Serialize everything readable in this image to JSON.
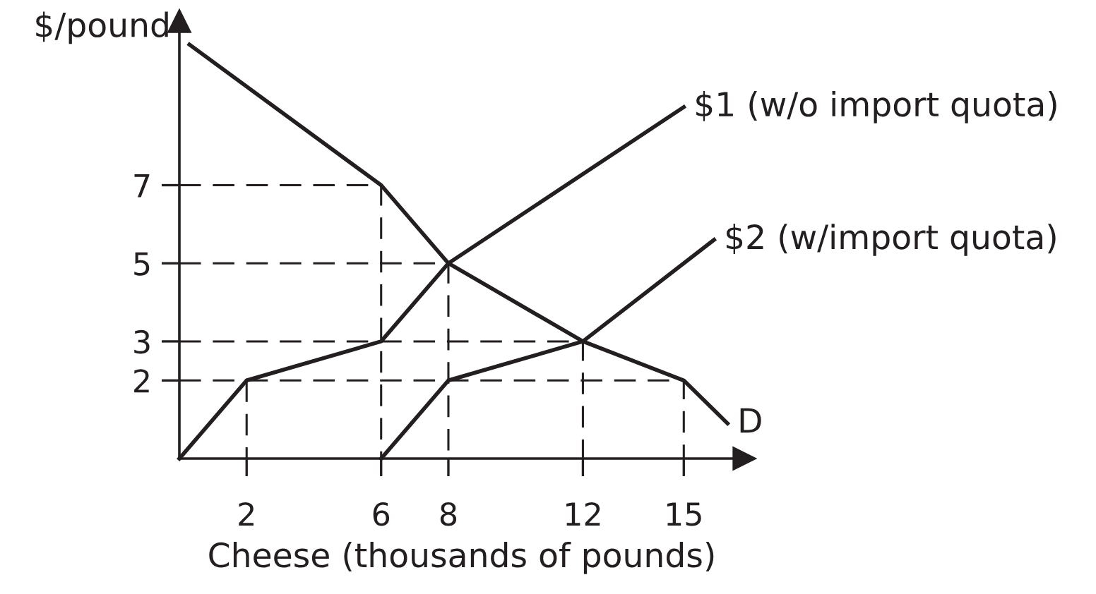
{
  "chart_data": {
    "type": "line",
    "xlabel": "Cheese (thousands of pounds)",
    "ylabel": "$/pound",
    "xlim": [
      0,
      16.8
    ],
    "ylim": [
      0,
      11.2
    ],
    "xticks": [
      2,
      6,
      8,
      12,
      15
    ],
    "yticks": [
      2,
      3,
      5,
      7
    ],
    "line_style": "solid",
    "series": [
      {
        "name": "D",
        "color": "#231f20",
        "x": [
          0.3,
          6,
          8,
          12,
          15,
          16.3
        ],
        "values": [
          10.6,
          7,
          5,
          3,
          2,
          0.9
        ]
      },
      {
        "name": "$1 (w/o import quota)",
        "color": "#231f20",
        "x": [
          0,
          2,
          6,
          8,
          15
        ],
        "values": [
          0,
          2,
          3,
          5,
          9
        ]
      },
      {
        "name": "$2 (w/import quota)",
        "color": "#231f20",
        "x": [
          6,
          8,
          12,
          15.9
        ],
        "values": [
          0,
          2,
          3,
          5.6
        ]
      },
      {
        "color": "#231f20",
        "line_style": "dashed",
        "x": [
          0,
          6,
          6
        ],
        "values": [
          7,
          7,
          0
        ]
      },
      {
        "color": "#231f20",
        "line_style": "dashed",
        "x": [
          0,
          8,
          8
        ],
        "values": [
          5,
          5,
          0
        ]
      },
      {
        "color": "#231f20",
        "line_style": "dashed",
        "x": [
          0,
          12,
          12
        ],
        "values": [
          3,
          3,
          0
        ]
      },
      {
        "color": "#231f20",
        "line_style": "dashed",
        "x": [
          0,
          15,
          15
        ],
        "values": [
          2,
          2,
          0
        ]
      },
      {
        "color": "#231f20",
        "line_style": "dashed",
        "x": [
          2,
          2
        ],
        "values": [
          2,
          0
        ]
      }
    ]
  }
}
